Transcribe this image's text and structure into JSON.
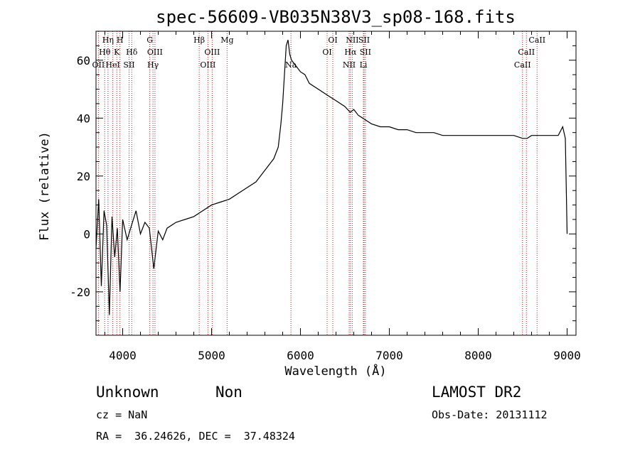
{
  "chart_data": {
    "type": "line",
    "title": "spec-56609-VB035N38V3_sp08-168.fits",
    "xlabel": "Wavelength (Å)",
    "ylabel": "Flux (relative)",
    "xlim": [
      3700,
      9100
    ],
    "ylim": [
      -35,
      70
    ],
    "xticks": [
      4000,
      5000,
      6000,
      7000,
      8000,
      9000
    ],
    "yticks": [
      -20,
      0,
      20,
      40,
      60
    ],
    "xtick_labels": [
      "4000",
      "5000",
      "6000",
      "7000",
      "8000",
      "9000"
    ],
    "ytick_labels": [
      "-20",
      "0",
      "20",
      "40",
      "60"
    ],
    "grid": false,
    "series": [
      {
        "x": [
          3700,
          3730,
          3760,
          3790,
          3820,
          3850,
          3880,
          3910,
          3940,
          3970,
          4000,
          4050,
          4100,
          4150,
          4200,
          4250,
          4300,
          4350,
          4400,
          4450,
          4500,
          4600,
          4700,
          4800,
          4900,
          5000,
          5100,
          5200,
          5300,
          5400,
          5500,
          5600,
          5650,
          5700,
          5750,
          5780,
          5800,
          5820,
          5840,
          5860,
          5880,
          5900,
          5950,
          6000,
          6050,
          6100,
          6200,
          6300,
          6400,
          6500,
          6560,
          6600,
          6650,
          6700,
          6750,
          6800,
          6900,
          7000,
          7100,
          7200,
          7300,
          7400,
          7500,
          7600,
          7700,
          7800,
          7900,
          8000,
          8100,
          8200,
          8300,
          8400,
          8500,
          8550,
          8600,
          8700,
          8800,
          8900,
          8950,
          8980,
          9000
        ],
        "values": [
          -5,
          12,
          -18,
          8,
          3,
          -28,
          6,
          -8,
          2,
          -20,
          5,
          -2,
          3,
          8,
          0,
          4,
          2,
          -12,
          1,
          -2,
          2,
          4,
          5,
          6,
          8,
          10,
          11,
          12,
          14,
          16,
          18,
          22,
          24,
          26,
          30,
          38,
          45,
          55,
          65,
          67,
          62,
          60,
          58,
          56,
          55,
          52,
          50,
          48,
          46,
          44,
          42,
          43,
          41,
          40,
          39,
          38,
          37,
          37,
          36,
          36,
          35,
          35,
          35,
          34,
          34,
          34,
          34,
          34,
          34,
          34,
          34,
          34,
          33,
          33,
          34,
          34,
          34,
          34,
          37,
          33,
          0
        ]
      }
    ],
    "line_color": "#000000",
    "marker_color": "#b22222"
  },
  "spectral_lines": [
    {
      "label": "OII",
      "wl": 3727,
      "row": 3
    },
    {
      "label": "Hθ",
      "wl": 3798,
      "row": 2
    },
    {
      "label": "Hη",
      "wl": 3835,
      "row": 1
    },
    {
      "label": "HeI",
      "wl": 3889,
      "row": 3
    },
    {
      "label": "K",
      "wl": 3934,
      "row": 2
    },
    {
      "label": "H",
      "wl": 3969,
      "row": 1
    },
    {
      "label": "SII",
      "wl": 4072,
      "row": 3
    },
    {
      "label": "Hδ",
      "wl": 4102,
      "row": 2
    },
    {
      "label": "G",
      "wl": 4305,
      "row": 1
    },
    {
      "label": "Hγ",
      "wl": 4341,
      "row": 3
    },
    {
      "label": "OIII",
      "wl": 4363,
      "row": 2
    },
    {
      "label": "Hβ",
      "wl": 4861,
      "row": 1
    },
    {
      "label": "OIII",
      "wl": 4959,
      "row": 3
    },
    {
      "label": "OIII",
      "wl": 5007,
      "row": 2
    },
    {
      "label": "Mg",
      "wl": 5175,
      "row": 1
    },
    {
      "label": "Na",
      "wl": 5893,
      "row": 3
    },
    {
      "label": "OI",
      "wl": 6300,
      "row": 2
    },
    {
      "label": "OI",
      "wl": 6364,
      "row": 1
    },
    {
      "label": "NII",
      "wl": 6548,
      "row": 3
    },
    {
      "label": "Hα",
      "wl": 6563,
      "row": 2
    },
    {
      "label": "NII",
      "wl": 6583,
      "row": 1
    },
    {
      "label": "Li",
      "wl": 6708,
      "row": 3
    },
    {
      "label": "SII",
      "wl": 6716,
      "row": 1
    },
    {
      "label": "SII",
      "wl": 6731,
      "row": 2
    },
    {
      "label": "CaII",
      "wl": 8498,
      "row": 3
    },
    {
      "label": "CaII",
      "wl": 8542,
      "row": 2
    },
    {
      "label": "CaII",
      "wl": 8662,
      "row": 1
    }
  ],
  "footer": {
    "classification": "Unknown",
    "subclass": "Non",
    "cz": "cz = NaN",
    "coords": "RA =  36.24626, DEC =  37.48324",
    "survey": "LAMOST DR2",
    "obs_date": "Obs-Date: 20131112"
  }
}
